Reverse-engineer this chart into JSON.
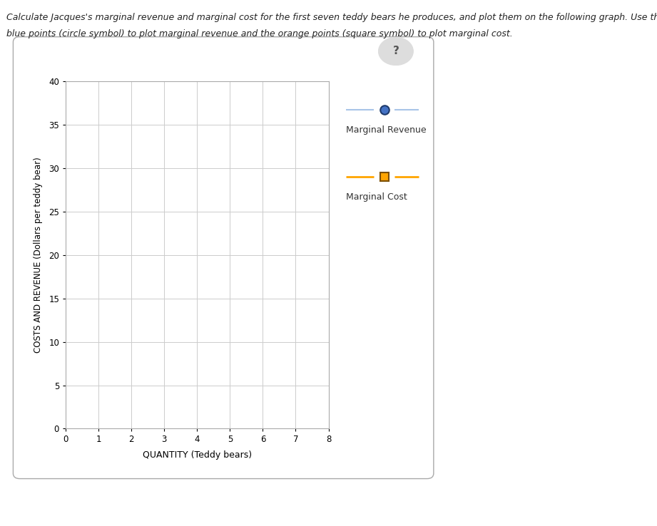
{
  "xlabel": "QUANTITY (Teddy bears)",
  "ylabel": "COSTS AND REVENUE (Dollars per teddy bear)",
  "xlim": [
    0,
    8
  ],
  "ylim": [
    0,
    40
  ],
  "xticks": [
    0,
    1,
    2,
    3,
    4,
    5,
    6,
    7,
    8
  ],
  "yticks": [
    0,
    5,
    10,
    15,
    20,
    25,
    30,
    35,
    40
  ],
  "mr_color": "#4472C4",
  "mc_color": "#FFA500",
  "mr_label": "Marginal Revenue",
  "mc_label": "Marginal Cost",
  "bg_color": "#FFFFFF",
  "grid_color": "#CCCCCC",
  "fig_width": 9.21,
  "fig_height": 7.38,
  "dpi": 100,
  "title_line1": "Calculate Jacques's marginal revenue and marginal cost for the first seven teddy bears he produces, and plot them on the following graph. Use the",
  "title_line2": "blue points (circle symbol) to plot marginal revenue and the orange points (square symbol) to plot marginal cost."
}
